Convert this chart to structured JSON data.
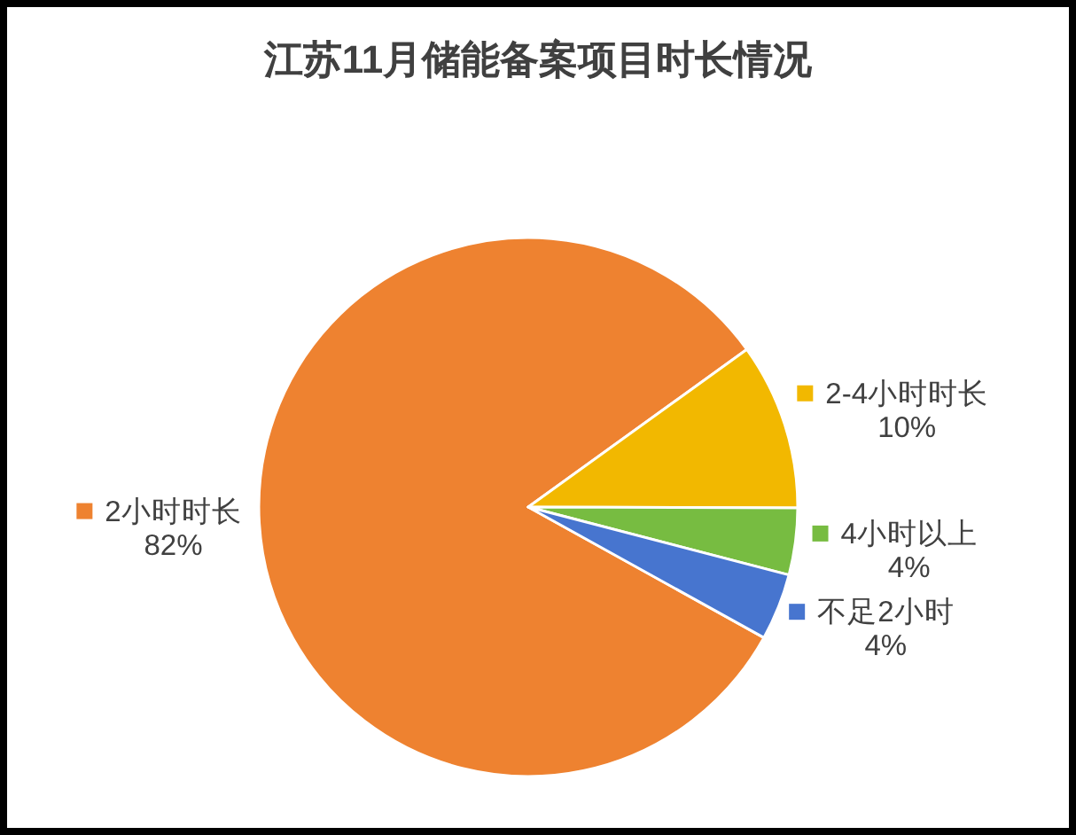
{
  "chart_data": {
    "type": "pie",
    "title": "江苏11月储能备案项目时长情况",
    "categories": [
      "2小时时长",
      "2-4小时时长",
      "4小时以上",
      "不足2小时"
    ],
    "values": [
      82,
      10,
      4,
      4
    ],
    "value_labels": [
      "82%",
      "10%",
      "4%",
      "4%"
    ],
    "colors": [
      "#ee8230",
      "#f2b800",
      "#77bc41",
      "#4775cf"
    ],
    "legend": "right"
  }
}
